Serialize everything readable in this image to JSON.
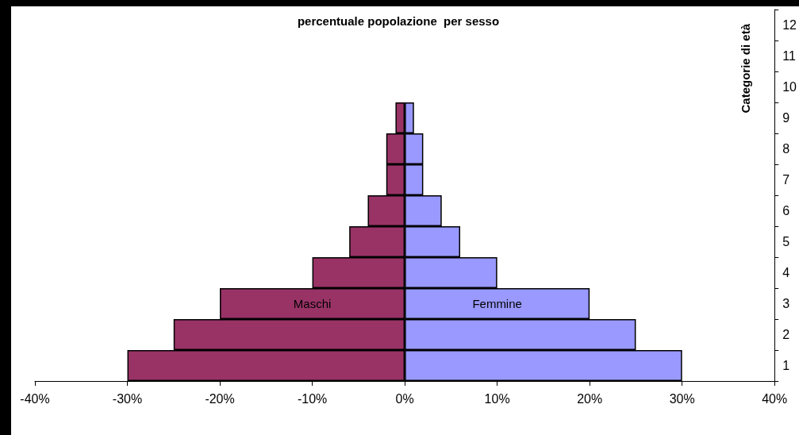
{
  "chart_data": {
    "type": "bar",
    "orientation": "horizontal",
    "stacked": true,
    "title": "percentuale popolazione  per sesso",
    "ylabel": "Categorie di età",
    "categories": [
      "12",
      "11",
      "10",
      "9",
      "8",
      "7",
      "6",
      "5",
      "4",
      "3",
      "2",
      "1"
    ],
    "series": [
      {
        "name": "Maschi",
        "color": "#993366",
        "values": [
          null,
          null,
          null,
          -1,
          -2,
          -2,
          -4,
          -6,
          -10,
          -20,
          -25,
          -30
        ]
      },
      {
        "name": "Femmine",
        "color": "#9999ff",
        "values": [
          null,
          null,
          null,
          1,
          2,
          2,
          4,
          6,
          10,
          20,
          25,
          30
        ]
      }
    ],
    "xlim": [
      -40,
      40
    ],
    "xticks": [
      {
        "value": -40,
        "label": "-40%"
      },
      {
        "value": -30,
        "label": "-30%"
      },
      {
        "value": -20,
        "label": "-20%"
      },
      {
        "value": -10,
        "label": "-10%"
      },
      {
        "value": 0,
        "label": "0%"
      },
      {
        "value": 10,
        "label": "10%"
      },
      {
        "value": 20,
        "label": "20%"
      },
      {
        "value": 30,
        "label": "30%"
      },
      {
        "value": 40,
        "label": "40%"
      }
    ],
    "grid": false,
    "legend": false
  }
}
